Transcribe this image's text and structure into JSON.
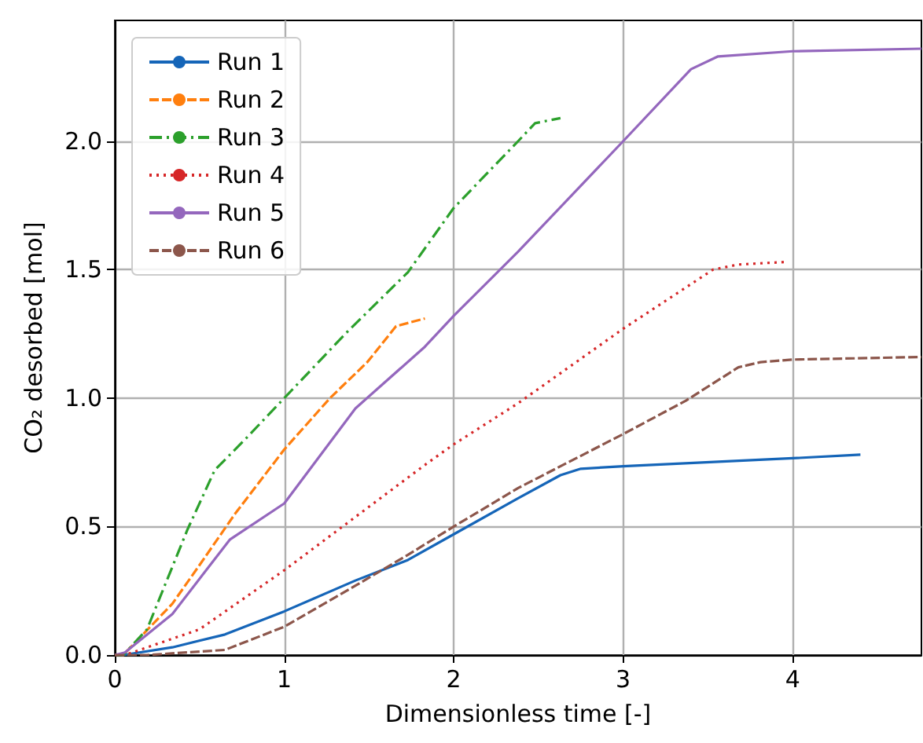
{
  "chart_data": {
    "type": "line",
    "xlabel": "Dimensionless time [-]",
    "ylabel": "CO₂ desorbed [mol]",
    "xlim": [
      0,
      4.76
    ],
    "ylim": [
      0,
      2.47
    ],
    "xticks": [
      0,
      1,
      2,
      3,
      4
    ],
    "yticks": [
      {
        "value": 0,
        "label": "0.0"
      },
      0.5,
      {
        "value": 1,
        "label": "1.0"
      },
      1.5,
      {
        "value": 2,
        "label": "2.0"
      }
    ],
    "grid": true,
    "legend": "top left",
    "marker": "none",
    "series": [
      {
        "name": "Run 1",
        "color": "#1565b8",
        "line_style": "solid",
        "x": [
          0,
          0.05,
          0.34,
          0.65,
          1.0,
          1.42,
          1.73,
          2.0,
          2.38,
          2.63,
          2.75,
          3.0,
          4.0,
          4.4
        ],
        "values": [
          0,
          0,
          0.03,
          0.08,
          0.17,
          0.29,
          0.37,
          0.47,
          0.61,
          0.7,
          0.725,
          0.735,
          0.766,
          0.78
        ]
      },
      {
        "name": "Run 2",
        "color": "#ff7f0e",
        "line_style": "dashed",
        "x": [
          0,
          0.05,
          0.34,
          0.5,
          0.71,
          1.0,
          1.27,
          1.49,
          1.66,
          1.83
        ],
        "values": [
          0,
          0,
          0.2,
          0.35,
          0.55,
          0.8,
          1.0,
          1.14,
          1.28,
          1.31
        ]
      },
      {
        "name": "Run 3",
        "color": "#2ca02c",
        "line_style": "dashdot",
        "x": [
          0,
          0.05,
          0.19,
          0.43,
          0.59,
          0.77,
          1.0,
          1.36,
          1.73,
          2.0,
          2.38,
          2.48,
          2.63
        ],
        "values": [
          0,
          0,
          0.1,
          0.49,
          0.72,
          0.84,
          1.0,
          1.25,
          1.49,
          1.74,
          2.0,
          2.07,
          2.09
        ]
      },
      {
        "name": "Run 4",
        "color": "#d62728",
        "line_style": "dotted",
        "x": [
          0,
          0.06,
          0.5,
          1.0,
          1.83,
          2.0,
          2.38,
          3.0,
          3.53,
          3.68,
          3.96
        ],
        "values": [
          0,
          0,
          0.1,
          0.33,
          0.74,
          0.82,
          0.98,
          1.27,
          1.5,
          1.52,
          1.53
        ]
      },
      {
        "name": "Run 5",
        "color": "#9467bd",
        "line_style": "solid",
        "x": [
          0,
          0.06,
          0.34,
          0.68,
          1.0,
          1.42,
          1.83,
          2.0,
          2.38,
          3.0,
          3.4,
          3.56,
          4.0,
          4.76
        ],
        "values": [
          0,
          0.01,
          0.16,
          0.45,
          0.59,
          0.96,
          1.2,
          1.32,
          1.57,
          2.0,
          2.28,
          2.33,
          2.35,
          2.36
        ]
      },
      {
        "name": "Run 6",
        "color": "#8c564b",
        "line_style": "dashed",
        "x": [
          0,
          0.19,
          0.65,
          1.0,
          1.42,
          1.73,
          2.0,
          2.38,
          3.0,
          3.37,
          3.68,
          3.81,
          4.0,
          4.76
        ],
        "values": [
          0,
          0,
          0.02,
          0.11,
          0.27,
          0.39,
          0.5,
          0.65,
          0.86,
          0.99,
          1.12,
          1.14,
          1.15,
          1.16
        ]
      }
    ]
  }
}
